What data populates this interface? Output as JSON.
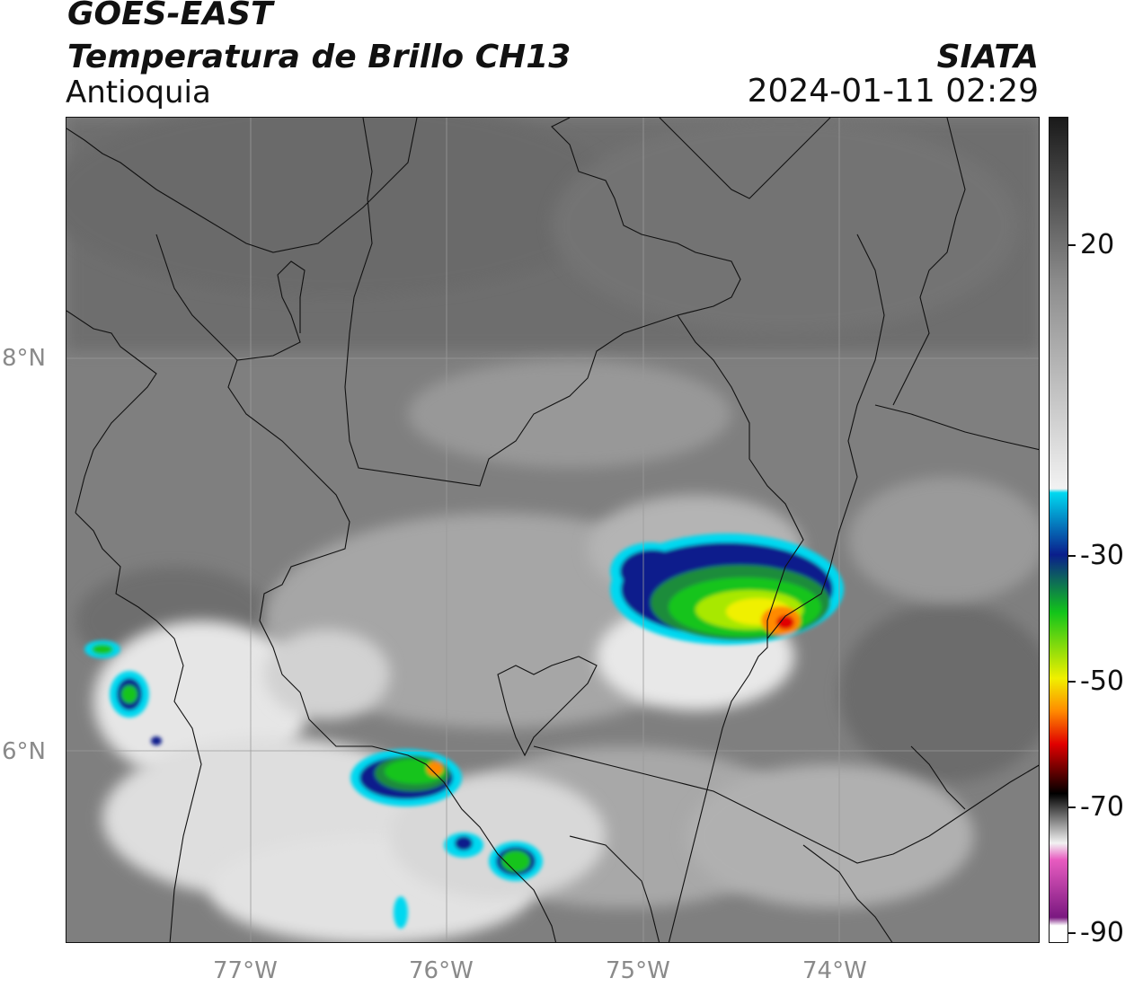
{
  "header": {
    "satellite": "GOES-EAST",
    "product": "Temperatura de Brillo CH13",
    "region": "Antioquia",
    "organization": "SIATA",
    "datetime": "2024-01-11 02:29"
  },
  "map": {
    "latitude_labels": [
      "8°N",
      "6°N"
    ],
    "longitude_labels": [
      "77°W",
      "76°W",
      "75°W",
      "74°W"
    ]
  },
  "colorbar": {
    "tick_labels": [
      "20",
      "-30",
      "-50",
      "-70",
      "-90"
    ],
    "colors": {
      "warm": "#1a1a1a",
      "gray": "#8c8c8c",
      "white": "#f2f2f2",
      "cyan": "#00d8f0",
      "blue": "#0a1e8c",
      "green": "#12c41a",
      "yellow": "#f0f000",
      "orange": "#ff8a00",
      "red": "#e00000",
      "black": "#000000",
      "pink": "#e85cc0",
      "purple": "#7a1880"
    }
  }
}
